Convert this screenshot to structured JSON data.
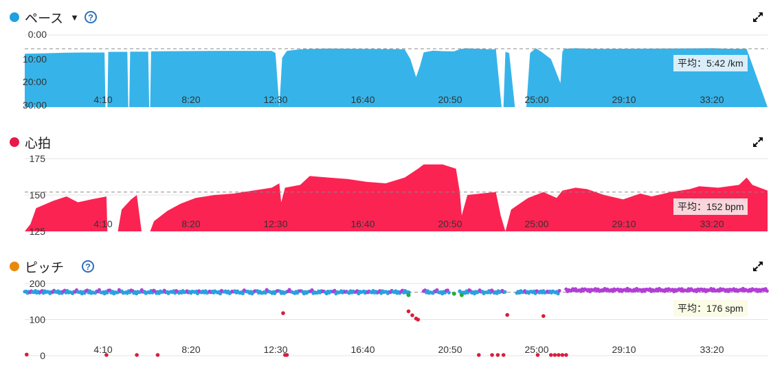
{
  "panels": {
    "pace": {
      "title": "ペース",
      "caret": "▼",
      "help": "?",
      "color": "#1fa0e0",
      "fill": "#36b4ea",
      "avg_label": "平均：5:42 /km",
      "avg_bg": "#d9eef8"
    },
    "hr": {
      "title": "心拍",
      "color": "#e8184a",
      "fill": "#fb2352",
      "avg_label": "平均：152 bpm",
      "avg_bg": "#f8d6db"
    },
    "cadence": {
      "title": "ピッチ",
      "help": "?",
      "color": "#e8890c",
      "avg_label": "平均：176 spm",
      "avg_bg": "#fbfbe6"
    }
  },
  "chart_data": [
    {
      "type": "area",
      "name": "pace",
      "x_unit": "minutes",
      "x_ticks": [
        "4:10",
        "8:20",
        "12:30",
        "16:40",
        "20:50",
        "25:00",
        "29:10",
        "33:20"
      ],
      "y_ticks": [
        "0:00",
        "10:00",
        "20:00",
        "30:00"
      ],
      "ylim_min_per_km": [
        0,
        30
      ],
      "y_inverted": true,
      "avg_min_per_km": 5.7,
      "points": [
        [
          0,
          7.8
        ],
        [
          1,
          7.6
        ],
        [
          2,
          7.4
        ],
        [
          3,
          7.3
        ],
        [
          4.2,
          7.3
        ],
        [
          4.25,
          30
        ],
        [
          4.35,
          30
        ],
        [
          4.4,
          7.0
        ],
        [
          5.4,
          7.0
        ],
        [
          5.45,
          30
        ],
        [
          5.5,
          30
        ],
        [
          5.55,
          6.9
        ],
        [
          6.5,
          6.9
        ],
        [
          6.55,
          30
        ],
        [
          6.6,
          30
        ],
        [
          6.65,
          6.8
        ],
        [
          10,
          6.6
        ],
        [
          13,
          6.6
        ],
        [
          13.2,
          7.5
        ],
        [
          13.4,
          30
        ],
        [
          13.55,
          9.5
        ],
        [
          13.8,
          6.6
        ],
        [
          14.5,
          5.9
        ],
        [
          16,
          5.6
        ],
        [
          18,
          5.8
        ],
        [
          20,
          5.9
        ],
        [
          20.3,
          10
        ],
        [
          20.6,
          17.5
        ],
        [
          20.8,
          13
        ],
        [
          21,
          7.2
        ],
        [
          21.5,
          6.5
        ],
        [
          22,
          6.7
        ],
        [
          22.6,
          6.8
        ],
        [
          22.9,
          5.9
        ],
        [
          23.2,
          5.5
        ],
        [
          24.6,
          6.0
        ],
        [
          24.8,
          5.8
        ],
        [
          25.1,
          30
        ],
        [
          25.2,
          30
        ],
        [
          25.3,
          7.0
        ],
        [
          25.5,
          7.5
        ],
        [
          25.8,
          30
        ],
        [
          26.4,
          30
        ],
        [
          26.6,
          7.5
        ],
        [
          26.9,
          5.5
        ],
        [
          27.2,
          7.0
        ],
        [
          27.7,
          10
        ],
        [
          28,
          16
        ],
        [
          28.2,
          20
        ],
        [
          28.3,
          7.0
        ],
        [
          28.4,
          5.7
        ],
        [
          29,
          5.5
        ],
        [
          30,
          5.8
        ],
        [
          32,
          5.7
        ],
        [
          34,
          5.6
        ],
        [
          36.3,
          5.5
        ],
        [
          37,
          5.7
        ],
        [
          38,
          5.8
        ]
      ]
    },
    {
      "type": "area",
      "name": "heart_rate",
      "x_unit": "minutes",
      "x_ticks": [
        "4:10",
        "8:20",
        "12:30",
        "16:40",
        "20:50",
        "25:00",
        "29:10",
        "33:20"
      ],
      "y_ticks": [
        "175",
        "150",
        "125"
      ],
      "ylim_bpm": [
        125,
        175
      ],
      "avg_bpm": 152,
      "points": [
        [
          0,
          125
        ],
        [
          0.3,
          130
        ],
        [
          0.6,
          141
        ],
        [
          1.5,
          146
        ],
        [
          2.2,
          149
        ],
        [
          2.8,
          145
        ],
        [
          3.5,
          147
        ],
        [
          4.3,
          149
        ],
        [
          4.35,
          125
        ],
        [
          4.9,
          125
        ],
        [
          5.1,
          140
        ],
        [
          5.6,
          147
        ],
        [
          5.9,
          150
        ],
        [
          6.15,
          125
        ],
        [
          6.6,
          125
        ],
        [
          6.8,
          132
        ],
        [
          7.5,
          139
        ],
        [
          8.2,
          144
        ],
        [
          9,
          148
        ],
        [
          10,
          150
        ],
        [
          11,
          151
        ],
        [
          12,
          153
        ],
        [
          13,
          155
        ],
        [
          13.4,
          158
        ],
        [
          13.5,
          145
        ],
        [
          13.7,
          155
        ],
        [
          14.5,
          157
        ],
        [
          15,
          163
        ],
        [
          16,
          162
        ],
        [
          17,
          161
        ],
        [
          18,
          159
        ],
        [
          19,
          158
        ],
        [
          20,
          162
        ],
        [
          20.7,
          168
        ],
        [
          21,
          171
        ],
        [
          22,
          171
        ],
        [
          22.7,
          168
        ],
        [
          22.9,
          152
        ],
        [
          23,
          136
        ],
        [
          23.3,
          150
        ],
        [
          24,
          151
        ],
        [
          24.8,
          152
        ],
        [
          25.05,
          136
        ],
        [
          25.3,
          125
        ],
        [
          25.6,
          140
        ],
        [
          26.5,
          148
        ],
        [
          27.3,
          152
        ],
        [
          28,
          148
        ],
        [
          28.3,
          153
        ],
        [
          29,
          155
        ],
        [
          29.6,
          154
        ],
        [
          30.5,
          150
        ],
        [
          31.5,
          147
        ],
        [
          32.4,
          151
        ],
        [
          33,
          149
        ],
        [
          34,
          152
        ],
        [
          35,
          154
        ],
        [
          35.5,
          156
        ],
        [
          36.5,
          155
        ],
        [
          37.6,
          157
        ],
        [
          38,
          162
        ],
        [
          38.3,
          157
        ],
        [
          39.1,
          153
        ]
      ]
    },
    {
      "type": "scatter",
      "name": "cadence",
      "x_unit": "minutes",
      "x_ticks": [
        "4:10",
        "8:20",
        "12:30",
        "16:40",
        "20:50",
        "25:00",
        "29:10",
        "33:20"
      ],
      "y_ticks": [
        "200",
        "100",
        "0"
      ],
      "ylim_spm": [
        0,
        200
      ],
      "avg_spm": 176,
      "band_segments": [
        [
          0,
          20.3
        ],
        [
          21,
          22.4
        ],
        [
          22.9,
          25.3
        ],
        [
          25.9,
          28.2
        ],
        [
          28.5,
          39.1
        ]
      ],
      "band_y": 176,
      "magenta_segments": [
        [
          28.4,
          39.1
        ]
      ],
      "green_points": [
        [
          20.2,
          168
        ],
        [
          22.6,
          172
        ],
        [
          23.0,
          168
        ]
      ],
      "red_points": [
        [
          0.1,
          3
        ],
        [
          4.3,
          2
        ],
        [
          5.9,
          2
        ],
        [
          7.0,
          2
        ],
        [
          13.6,
          118
        ],
        [
          13.7,
          2
        ],
        [
          13.8,
          2
        ],
        [
          20.2,
          123
        ],
        [
          20.4,
          112
        ],
        [
          20.6,
          103
        ],
        [
          20.7,
          100
        ],
        [
          23.9,
          2
        ],
        [
          24.6,
          2
        ],
        [
          24.9,
          2
        ],
        [
          25.2,
          2
        ],
        [
          25.4,
          113
        ],
        [
          27.0,
          2
        ],
        [
          27.3,
          110
        ],
        [
          27.7,
          2
        ],
        [
          27.9,
          2
        ],
        [
          28.1,
          2
        ],
        [
          28.3,
          2
        ],
        [
          28.5,
          2
        ]
      ]
    }
  ]
}
